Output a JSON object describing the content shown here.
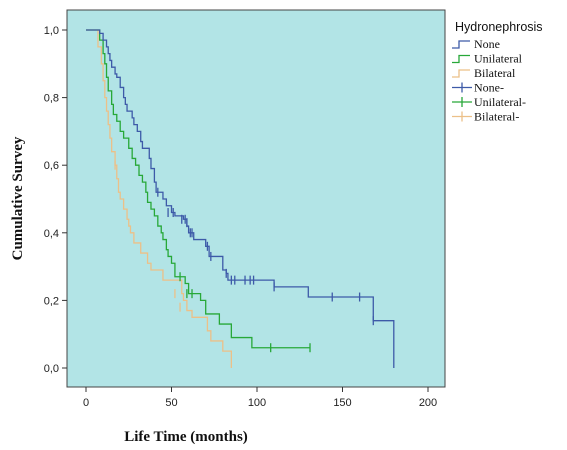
{
  "chart_data": {
    "type": "line",
    "title": "",
    "xlabel": "Life Time (months)",
    "ylabel": "Cumulative Survey",
    "xlim": [
      -10,
      210
    ],
    "ylim": [
      -0.06,
      1.06
    ],
    "xticks": [
      0,
      50,
      100,
      150,
      200
    ],
    "xtick_labels": [
      "0",
      "50",
      "100",
      "150",
      "200"
    ],
    "yticks": [
      0.0,
      0.2,
      0.4,
      0.6,
      0.8,
      1.0
    ],
    "ytick_labels": [
      "0,0",
      "0,2",
      "0,4",
      "0,6",
      "0,8",
      "1,0"
    ],
    "plot_background": "#b2e4e6",
    "grid": false,
    "legend_title": "Hydronephrosis",
    "legend_placement": "right",
    "series": [
      {
        "name": "None",
        "censor_name": "None-",
        "color": "#3d5aa8",
        "steps": [
          [
            0,
            1.0
          ],
          [
            6,
            1.0
          ],
          [
            8,
            0.99
          ],
          [
            10,
            0.97
          ],
          [
            12,
            0.95
          ],
          [
            13,
            0.93
          ],
          [
            14,
            0.91
          ],
          [
            15,
            0.89
          ],
          [
            17,
            0.87
          ],
          [
            18,
            0.86
          ],
          [
            20,
            0.83
          ],
          [
            22,
            0.8
          ],
          [
            23,
            0.78
          ],
          [
            24,
            0.76
          ],
          [
            27,
            0.74
          ],
          [
            28,
            0.72
          ],
          [
            30,
            0.7
          ],
          [
            32,
            0.67
          ],
          [
            33,
            0.65
          ],
          [
            37,
            0.62
          ],
          [
            38,
            0.59
          ],
          [
            40,
            0.55
          ],
          [
            41,
            0.52
          ],
          [
            45,
            0.5
          ],
          [
            47,
            0.48
          ],
          [
            50,
            0.46
          ],
          [
            52,
            0.45
          ],
          [
            57,
            0.44
          ],
          [
            59,
            0.42
          ],
          [
            60,
            0.4
          ],
          [
            63,
            0.38
          ],
          [
            70,
            0.36
          ],
          [
            72,
            0.33
          ],
          [
            80,
            0.29
          ],
          [
            82,
            0.28
          ],
          [
            83,
            0.26
          ],
          [
            110,
            0.24
          ],
          [
            130,
            0.21
          ],
          [
            168,
            0.14
          ],
          [
            180,
            0.14
          ],
          [
            180,
            0.0
          ]
        ],
        "censored": [
          [
            42,
            0.52
          ],
          [
            48,
            0.46
          ],
          [
            51,
            0.46
          ],
          [
            56,
            0.44
          ],
          [
            58,
            0.44
          ],
          [
            59,
            0.43
          ],
          [
            61,
            0.4
          ],
          [
            62,
            0.4
          ],
          [
            71,
            0.36
          ],
          [
            73,
            0.33
          ],
          [
            82,
            0.28
          ],
          [
            85,
            0.26
          ],
          [
            87,
            0.26
          ],
          [
            93,
            0.26
          ],
          [
            96,
            0.26
          ],
          [
            98,
            0.26
          ],
          [
            110,
            0.24
          ],
          [
            144,
            0.21
          ],
          [
            160,
            0.21
          ],
          [
            168,
            0.14
          ]
        ]
      },
      {
        "name": "Unilateral",
        "censor_name": "Unilateral-",
        "color": "#27a838",
        "steps": [
          [
            0,
            1.0
          ],
          [
            6,
            1.0
          ],
          [
            8,
            0.97
          ],
          [
            10,
            0.93
          ],
          [
            11,
            0.9
          ],
          [
            12,
            0.86
          ],
          [
            13,
            0.82
          ],
          [
            15,
            0.78
          ],
          [
            16,
            0.75
          ],
          [
            18,
            0.73
          ],
          [
            20,
            0.7
          ],
          [
            22,
            0.68
          ],
          [
            25,
            0.65
          ],
          [
            27,
            0.62
          ],
          [
            29,
            0.6
          ],
          [
            31,
            0.57
          ],
          [
            33,
            0.55
          ],
          [
            35,
            0.52
          ],
          [
            36,
            0.49
          ],
          [
            38,
            0.47
          ],
          [
            40,
            0.45
          ],
          [
            42,
            0.42
          ],
          [
            44,
            0.4
          ],
          [
            45,
            0.38
          ],
          [
            47,
            0.35
          ],
          [
            48,
            0.33
          ],
          [
            50,
            0.31
          ],
          [
            52,
            0.27
          ],
          [
            58,
            0.25
          ],
          [
            60,
            0.22
          ],
          [
            67,
            0.2
          ],
          [
            70,
            0.16
          ],
          [
            78,
            0.13
          ],
          [
            85,
            0.09
          ],
          [
            97,
            0.06
          ],
          [
            131,
            0.06
          ]
        ],
        "censored": [
          [
            55,
            0.27
          ],
          [
            59,
            0.22
          ],
          [
            62,
            0.22
          ],
          [
            108,
            0.06
          ],
          [
            131,
            0.06
          ]
        ]
      },
      {
        "name": "Bilateral",
        "censor_name": "Bilateral-",
        "color": "#ecc088",
        "steps": [
          [
            0,
            1.0
          ],
          [
            5,
            1.0
          ],
          [
            7,
            0.95
          ],
          [
            9,
            0.9
          ],
          [
            10,
            0.85
          ],
          [
            11,
            0.8
          ],
          [
            12,
            0.76
          ],
          [
            13,
            0.72
          ],
          [
            14,
            0.68
          ],
          [
            15,
            0.64
          ],
          [
            17,
            0.6
          ],
          [
            18,
            0.56
          ],
          [
            19,
            0.52
          ],
          [
            20,
            0.5
          ],
          [
            22,
            0.47
          ],
          [
            24,
            0.44
          ],
          [
            25,
            0.42
          ],
          [
            26,
            0.4
          ],
          [
            28,
            0.37
          ],
          [
            32,
            0.34
          ],
          [
            36,
            0.31
          ],
          [
            38,
            0.29
          ],
          [
            45,
            0.26
          ],
          [
            56,
            0.22
          ],
          [
            57,
            0.2
          ],
          [
            59,
            0.17
          ],
          [
            62,
            0.15
          ],
          [
            71,
            0.11
          ],
          [
            73,
            0.08
          ],
          [
            80,
            0.05
          ],
          [
            85,
            0.05
          ],
          [
            85,
            0.0
          ]
        ],
        "censored": [
          [
            17,
            0.6
          ],
          [
            52,
            0.22
          ],
          [
            55,
            0.18
          ]
        ]
      }
    ]
  }
}
